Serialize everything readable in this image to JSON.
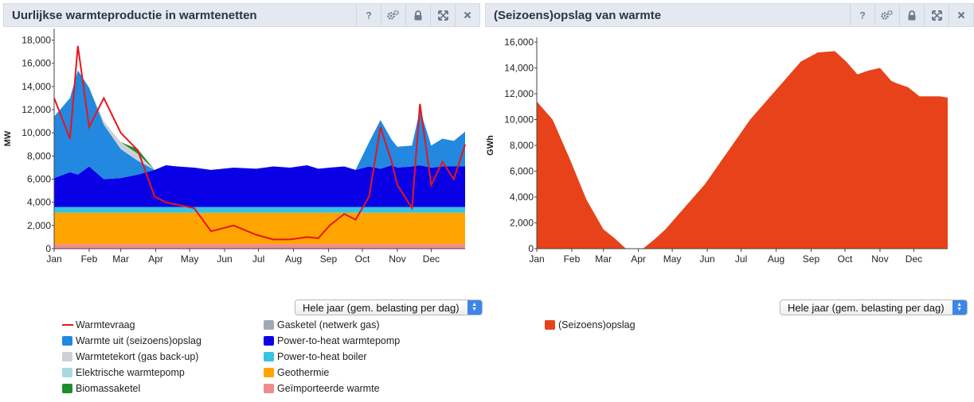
{
  "left_panel": {
    "title": "Uurlijkse warmteproductie in warmtenetten",
    "tools": [
      "help-icon",
      "settings-icon",
      "lock-icon",
      "expand-icon",
      "close-icon"
    ],
    "select_value": "Hele jaar (gem. belasting per dag)",
    "legend": [
      {
        "label": "Warmtevraag",
        "color": "#e8151b",
        "kind": "line"
      },
      {
        "label": "Warmte uit (seizoens)opslag",
        "color": "#2288e0",
        "kind": "box"
      },
      {
        "label": "Warmtetekort (gas back-up)",
        "color": "#cdd1d6",
        "kind": "box"
      },
      {
        "label": "Elektrische warmtepomp",
        "color": "#a6d9e0",
        "kind": "box"
      },
      {
        "label": "Biomassaketel",
        "color": "#1e8e2a",
        "kind": "box"
      },
      {
        "label": "Gasketel (netwerk gas)",
        "color": "#9eaab5",
        "kind": "box"
      },
      {
        "label": "Power-to-heat warmtepomp",
        "color": "#0a00e6",
        "kind": "box"
      },
      {
        "label": "Power-to-heat boiler",
        "color": "#37c3e3",
        "kind": "box"
      },
      {
        "label": "Geothermie",
        "color": "#ffa500",
        "kind": "box"
      },
      {
        "label": "Geïmporteerde warmte",
        "color": "#f28b8c",
        "kind": "box"
      }
    ]
  },
  "right_panel": {
    "title": "(Seizoens)opslag van warmte",
    "tools": [
      "help-icon",
      "settings-icon",
      "lock-icon",
      "expand-icon",
      "close-icon"
    ],
    "select_value": "Hele jaar (gem. belasting per dag)",
    "legend": [
      {
        "label": "(Seizoens)opslag",
        "color": "#e8421a",
        "kind": "box"
      }
    ]
  },
  "chart_data": [
    {
      "type": "area",
      "title": "Uurlijkse warmteproductie in warmtenetten",
      "ylabel": "MW",
      "ylim": [
        0,
        19000
      ],
      "yticks": [
        "0",
        "2,000",
        "4,000",
        "6,000",
        "8,000",
        "10,000",
        "12,000",
        "14,000",
        "16,000",
        "18,000"
      ],
      "yticks_values": [
        0,
        2000,
        4000,
        6000,
        8000,
        10000,
        12000,
        14000,
        16000,
        18000
      ],
      "xticks": [
        "Jan",
        "Feb",
        "Mar",
        "Apr",
        "May",
        "Jun",
        "Jul",
        "Aug",
        "Sep",
        "Oct",
        "Nov",
        "Dec"
      ],
      "x_unit": "day of year (approx.)",
      "x": [
        1,
        15,
        22,
        32,
        45,
        60,
        75,
        90,
        100,
        110,
        125,
        140,
        160,
        180,
        195,
        210,
        225,
        235,
        245,
        258,
        268,
        280,
        290,
        300,
        305,
        318,
        325,
        335,
        345,
        355,
        365
      ],
      "series": [
        {
          "name": "Geïmporteerde warmte",
          "color": "#f28b8c",
          "values": [
            400,
            400,
            400,
            400,
            400,
            400,
            400,
            400,
            400,
            400,
            400,
            400,
            400,
            400,
            400,
            400,
            400,
            400,
            400,
            400,
            400,
            400,
            400,
            400,
            400,
            400,
            400,
            400,
            400,
            400,
            400
          ]
        },
        {
          "name": "Geothermie",
          "color": "#ffa500",
          "values": [
            2700,
            2700,
            2700,
            2700,
            2700,
            2700,
            2700,
            2700,
            2700,
            2700,
            2700,
            2700,
            2700,
            2700,
            2700,
            2700,
            2700,
            2700,
            2700,
            2700,
            2700,
            2700,
            2700,
            2700,
            2700,
            2700,
            2700,
            2700,
            2700,
            2700,
            2700
          ]
        },
        {
          "name": "Power-to-heat boiler",
          "color": "#37c3e3",
          "values": [
            500,
            500,
            500,
            500,
            500,
            500,
            500,
            500,
            500,
            500,
            500,
            500,
            500,
            500,
            500,
            500,
            500,
            500,
            500,
            500,
            500,
            500,
            500,
            500,
            500,
            500,
            500,
            500,
            500,
            500,
            500
          ]
        },
        {
          "name": "Power-to-heat warmtepomp",
          "color": "#0a00e6",
          "values": [
            2500,
            3000,
            2800,
            3500,
            2400,
            2500,
            2800,
            3200,
            3600,
            3500,
            3400,
            3200,
            3400,
            3300,
            3500,
            3400,
            3600,
            3300,
            3400,
            3500,
            3200,
            3500,
            3300,
            3600,
            3400,
            3500,
            3600,
            3400,
            3500,
            3500,
            3500
          ]
        },
        {
          "name": "Warmte uit (seizoens)opslag",
          "color": "#2288e0",
          "values": [
            5300,
            6400,
            9000,
            6800,
            4700,
            2500,
            1200,
            0,
            0,
            0,
            0,
            0,
            0,
            0,
            0,
            0,
            0,
            0,
            0,
            0,
            0,
            2100,
            4200,
            2200,
            1800,
            1800,
            4800,
            1900,
            2400,
            2200,
            3000
          ]
        },
        {
          "name": "Warmtetekort (gas back-up)",
          "color": "#cdd1d6",
          "values": [
            0,
            0,
            0,
            0,
            300,
            600,
            600,
            0,
            0,
            0,
            0,
            0,
            0,
            0,
            0,
            0,
            0,
            0,
            0,
            0,
            0,
            0,
            0,
            0,
            0,
            0,
            0,
            0,
            0,
            0,
            0
          ]
        },
        {
          "name": "Biomassaketel",
          "color": "#1e8e2a",
          "values": [
            0,
            0,
            0,
            0,
            0,
            0,
            400,
            0,
            0,
            0,
            0,
            0,
            0,
            0,
            0,
            0,
            0,
            0,
            0,
            0,
            0,
            0,
            0,
            0,
            0,
            0,
            0,
            0,
            0,
            0,
            0
          ]
        }
      ],
      "demand": {
        "name": "Warmtevraag",
        "color": "#e8151b",
        "values": [
          13000,
          9500,
          17500,
          10500,
          13000,
          10000,
          8500,
          4500,
          4000,
          3800,
          3500,
          1500,
          2000,
          1200,
          800,
          800,
          1000,
          900,
          2000,
          3000,
          2500,
          4500,
          10500,
          7500,
          5500,
          3500,
          12500,
          5500,
          7500,
          6000,
          9000
        ]
      }
    },
    {
      "type": "area",
      "title": "(Seizoens)opslag van warmte",
      "ylabel": "GWh",
      "ylim": [
        0,
        16000
      ],
      "yticks": [
        "0",
        "2,000",
        "4,000",
        "6,000",
        "8,000",
        "10,000",
        "12,000",
        "14,000",
        "16,000"
      ],
      "yticks_values": [
        0,
        2000,
        4000,
        6000,
        8000,
        10000,
        12000,
        14000,
        16000
      ],
      "xticks": [
        "Jan",
        "Feb",
        "Mar",
        "Apr",
        "May",
        "Jun",
        "Jul",
        "Aug",
        "Sep",
        "Oct",
        "Nov",
        "Dec"
      ],
      "x": [
        1,
        15,
        30,
        45,
        60,
        70,
        80,
        87,
        95,
        105,
        115,
        130,
        150,
        170,
        190,
        205,
        220,
        235,
        250,
        265,
        275,
        285,
        295,
        305,
        315,
        320,
        330,
        340,
        350,
        358,
        365
      ],
      "series": [
        {
          "name": "(Seizoens)opslag",
          "color": "#e8421a",
          "values": [
            11400,
            10000,
            7000,
            3800,
            1500,
            800,
            0,
            0,
            0,
            700,
            1500,
            3000,
            5000,
            7500,
            10000,
            11500,
            13000,
            14500,
            15200,
            15300,
            14500,
            13500,
            13800,
            14000,
            13000,
            12800,
            12500,
            11800,
            11800,
            11800,
            11700
          ]
        }
      ]
    }
  ]
}
